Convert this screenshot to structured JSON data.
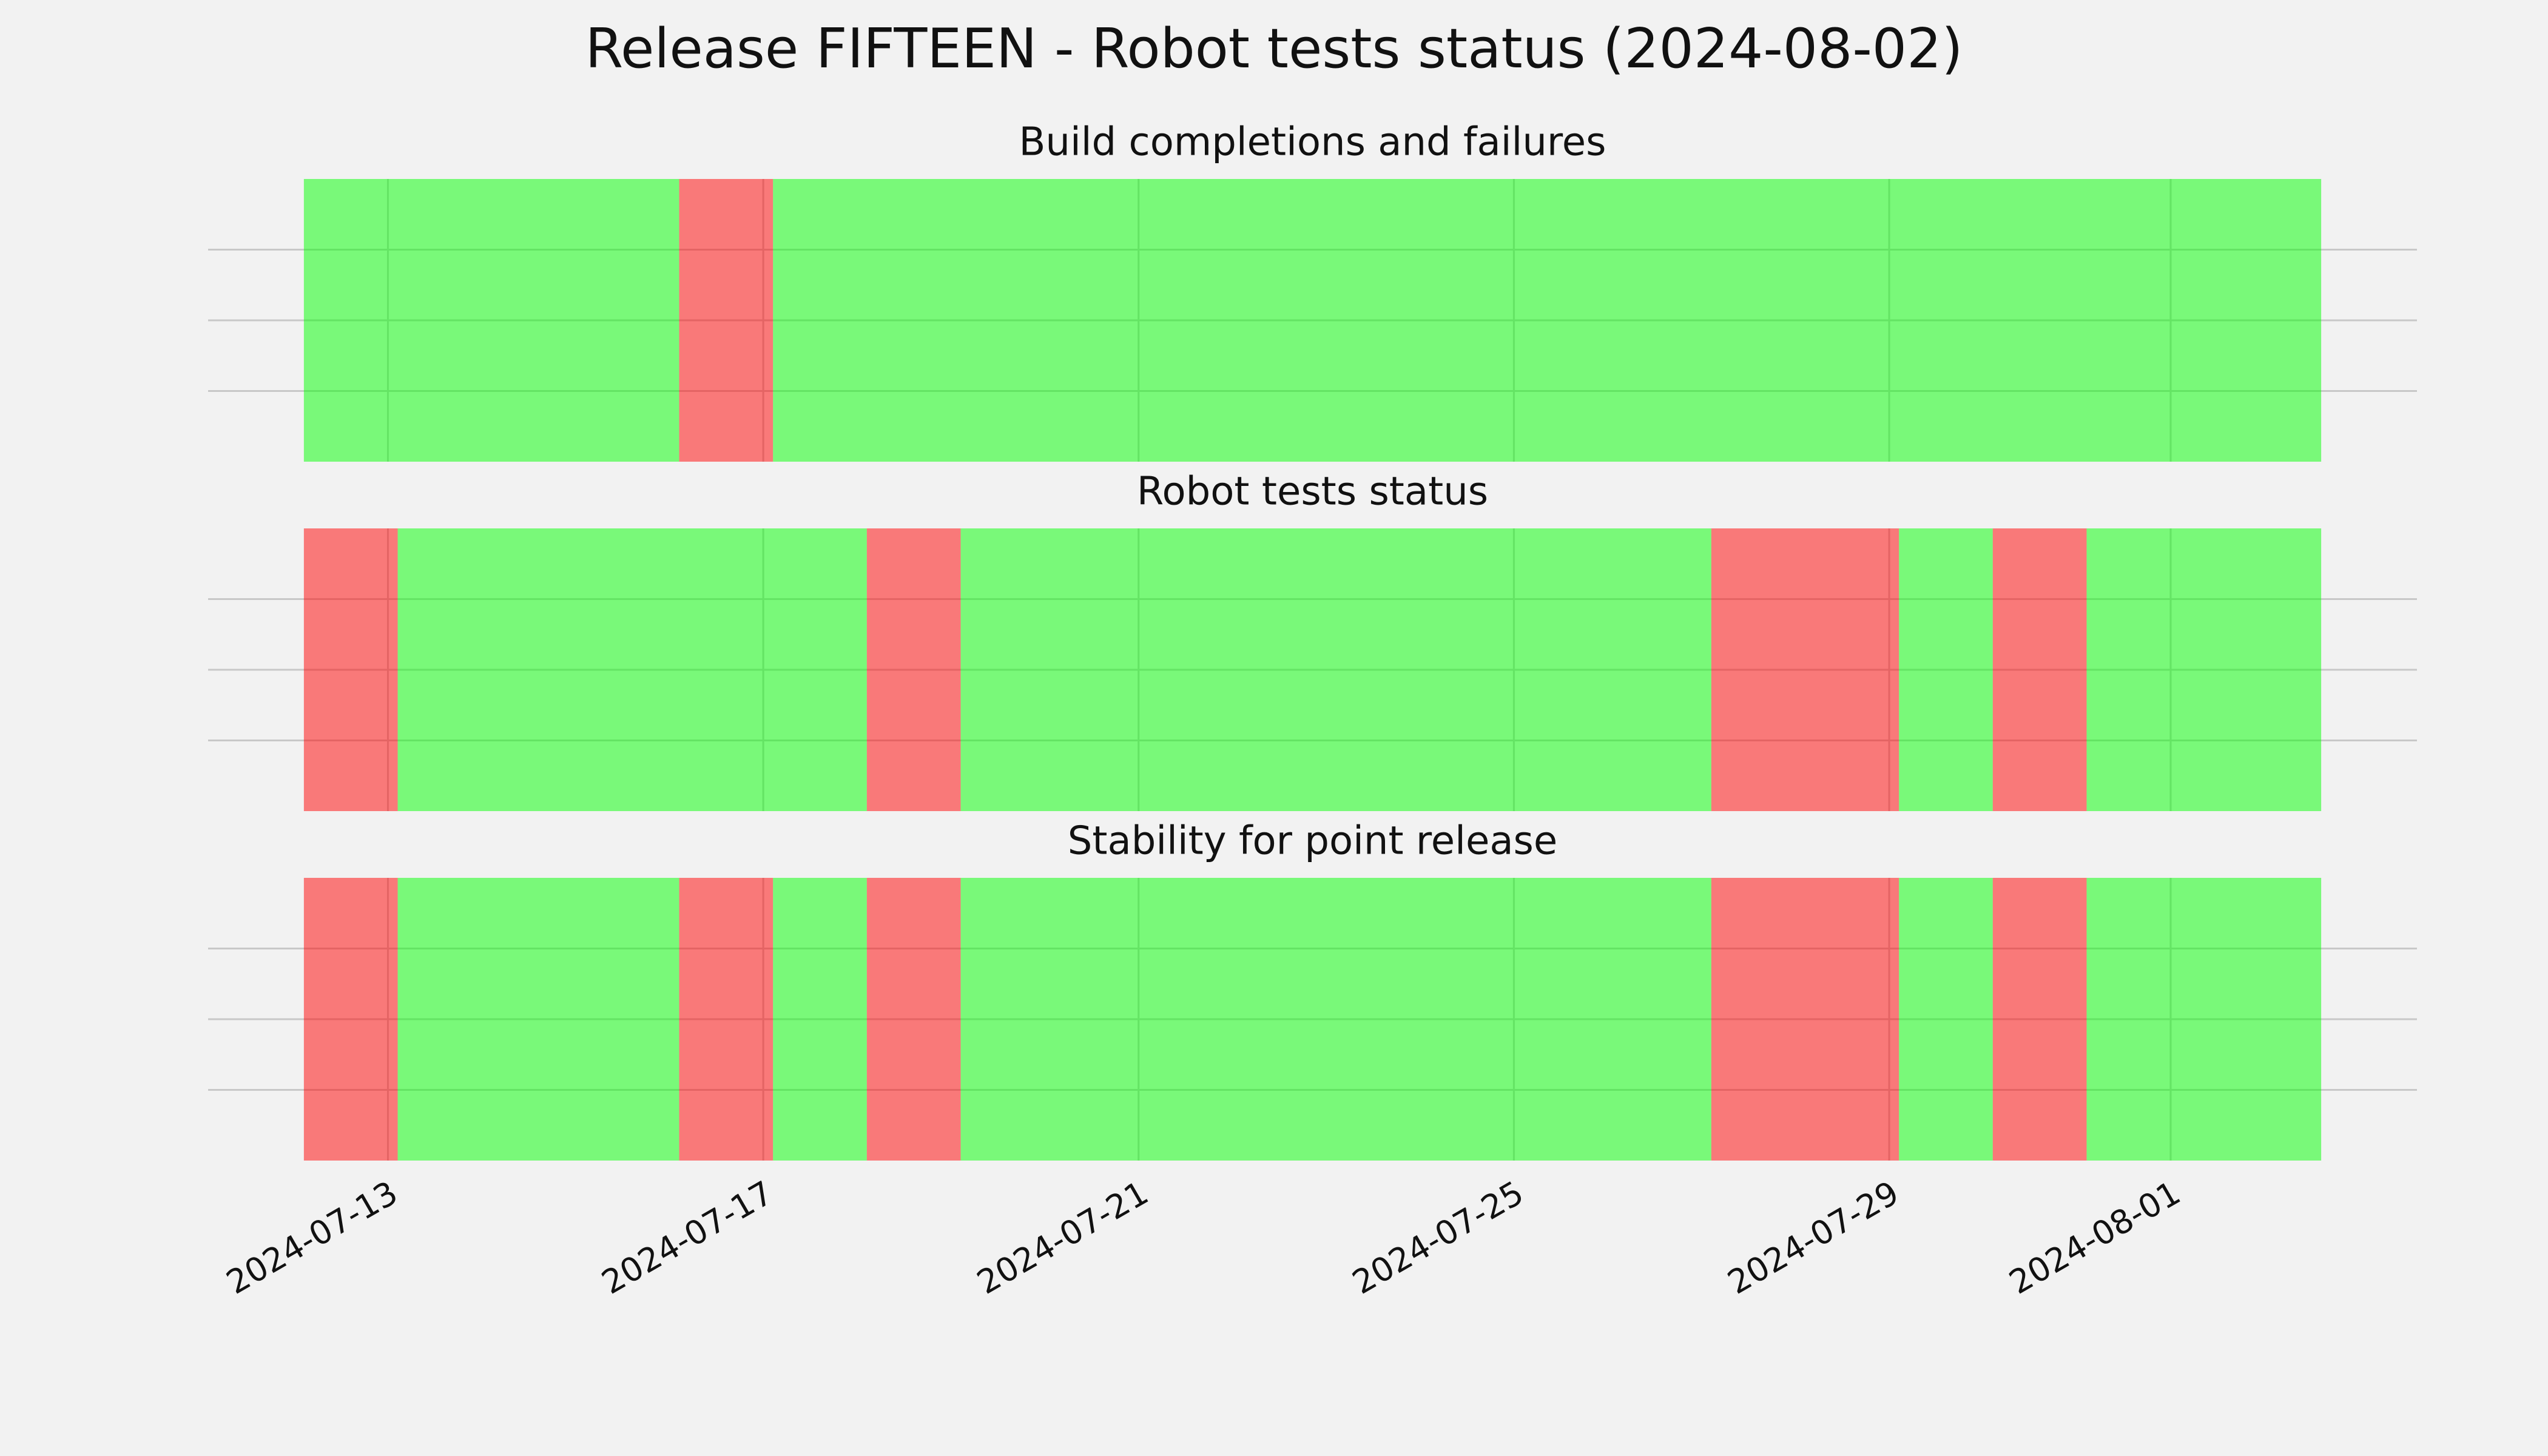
{
  "chart_data": {
    "type": "timeline",
    "title": "Release FIFTEEN - Robot tests status (2024-08-02)",
    "xlim": [
      "2024-07-11T02:00",
      "2024-08-03T15:00"
    ],
    "xticks": [
      "2024-07-13",
      "2024-07-17",
      "2024-07-21",
      "2024-07-25",
      "2024-07-29",
      "2024-08-01"
    ],
    "ylim": [
      0,
      1
    ],
    "yticks": [
      0.25,
      0.5,
      0.75
    ],
    "show_ytick_labels": false,
    "grid": true,
    "panels": [
      {
        "title": "Build completions and failures",
        "segments": [
          {
            "start": "2024-07-12T02:30",
            "end": "2024-07-16T02:30",
            "color": "#00ff00"
          },
          {
            "start": "2024-07-16T02:30",
            "end": "2024-07-17T02:30",
            "color": "#ff0000"
          },
          {
            "start": "2024-07-17T02:30",
            "end": "2024-08-02T14:30",
            "color": "#00ff00"
          }
        ]
      },
      {
        "title": "Robot tests status",
        "segments": [
          {
            "start": "2024-07-12T02:30",
            "end": "2024-07-13T02:30",
            "color": "#ff0000"
          },
          {
            "start": "2024-07-13T02:30",
            "end": "2024-07-18T02:30",
            "color": "#00ff00"
          },
          {
            "start": "2024-07-18T02:30",
            "end": "2024-07-19T02:30",
            "color": "#ff0000"
          },
          {
            "start": "2024-07-19T02:30",
            "end": "2024-07-27T02:30",
            "color": "#00ff00"
          },
          {
            "start": "2024-07-27T02:30",
            "end": "2024-07-29T02:30",
            "color": "#ff0000"
          },
          {
            "start": "2024-07-29T02:30",
            "end": "2024-07-30T02:30",
            "color": "#00ff00"
          },
          {
            "start": "2024-07-30T02:30",
            "end": "2024-07-31T02:30",
            "color": "#ff0000"
          },
          {
            "start": "2024-07-31T02:30",
            "end": "2024-08-02T14:30",
            "color": "#00ff00"
          }
        ]
      },
      {
        "title": "Stability for point release",
        "segments": [
          {
            "start": "2024-07-12T02:30",
            "end": "2024-07-13T02:30",
            "color": "#ff0000"
          },
          {
            "start": "2024-07-13T02:30",
            "end": "2024-07-16T02:30",
            "color": "#00ff00"
          },
          {
            "start": "2024-07-16T02:30",
            "end": "2024-07-17T02:30",
            "color": "#ff0000"
          },
          {
            "start": "2024-07-17T02:30",
            "end": "2024-07-18T02:30",
            "color": "#00ff00"
          },
          {
            "start": "2024-07-18T02:30",
            "end": "2024-07-19T02:30",
            "color": "#ff0000"
          },
          {
            "start": "2024-07-19T02:30",
            "end": "2024-07-27T02:30",
            "color": "#00ff00"
          },
          {
            "start": "2024-07-27T02:30",
            "end": "2024-07-29T02:30",
            "color": "#ff0000"
          },
          {
            "start": "2024-07-29T02:30",
            "end": "2024-07-30T02:30",
            "color": "#00ff00"
          },
          {
            "start": "2024-07-30T02:30",
            "end": "2024-07-31T02:30",
            "color": "#ff0000"
          },
          {
            "start": "2024-07-31T02:30",
            "end": "2024-08-02T14:30",
            "color": "#00ff00"
          }
        ]
      }
    ]
  }
}
